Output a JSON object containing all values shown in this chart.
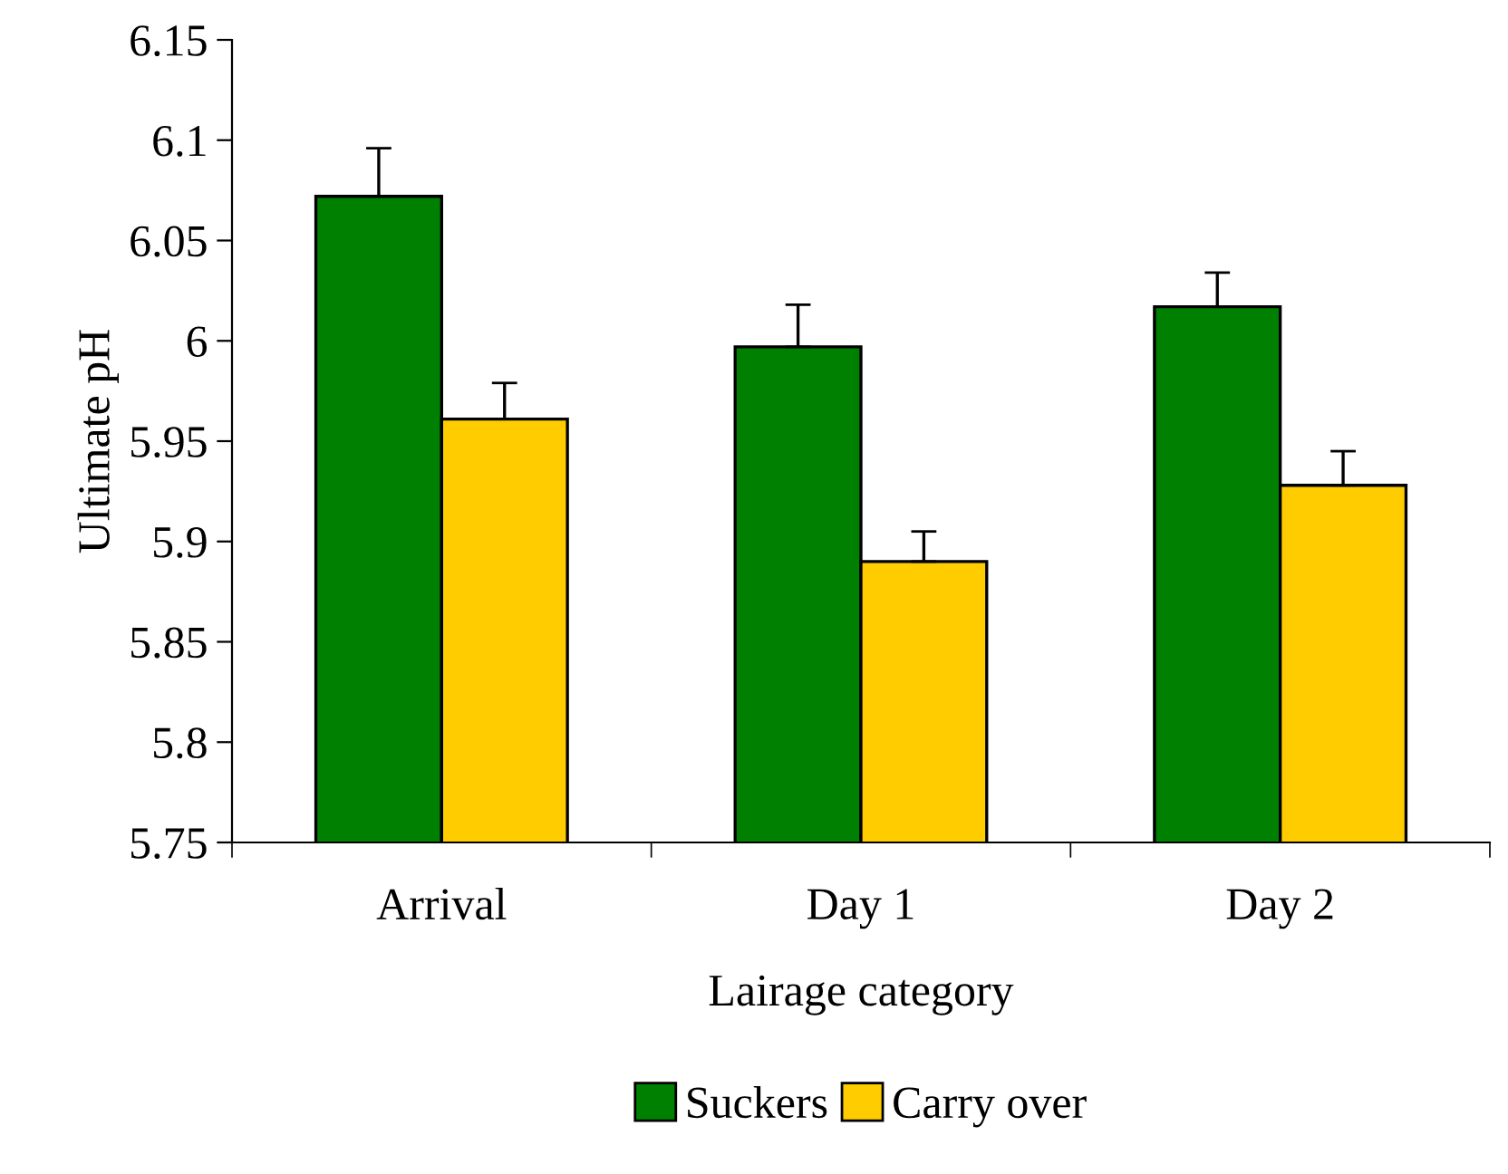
{
  "chart_data": {
    "type": "bar",
    "xlabel": "Lairage category",
    "ylabel": "Ultimate pH",
    "categories": [
      "Arrival",
      "Day 1",
      "Day 2"
    ],
    "series": [
      {
        "name": "Suckers",
        "color": "#008000",
        "values": [
          6.072,
          5.997,
          6.017
        ],
        "errors": [
          [
            6.072,
            6.096
          ],
          [
            5.997,
            6.018
          ],
          [
            6.017,
            6.034
          ]
        ]
      },
      {
        "name": "Carry over",
        "color": "#ffcc00",
        "values": [
          5.961,
          5.89,
          5.928
        ],
        "errors": [
          [
            5.961,
            5.979
          ],
          [
            5.89,
            5.905
          ],
          [
            5.928,
            5.945
          ]
        ]
      }
    ],
    "ylim": [
      5.75,
      6.15
    ],
    "yticks": [
      {
        "value": 5.75,
        "label": "5.75"
      },
      {
        "value": 5.8,
        "label": "5.8"
      },
      {
        "value": 5.85,
        "label": "5.85"
      },
      {
        "value": 5.9,
        "label": "5.9"
      },
      {
        "value": 5.95,
        "label": "5.95"
      },
      {
        "value": 6.0,
        "label": "6"
      },
      {
        "value": 6.05,
        "label": "6.05"
      },
      {
        "value": 6.1,
        "label": "6.1"
      },
      {
        "value": 6.15,
        "label": "6.15"
      }
    ],
    "grid": false,
    "legend": "bottom"
  }
}
